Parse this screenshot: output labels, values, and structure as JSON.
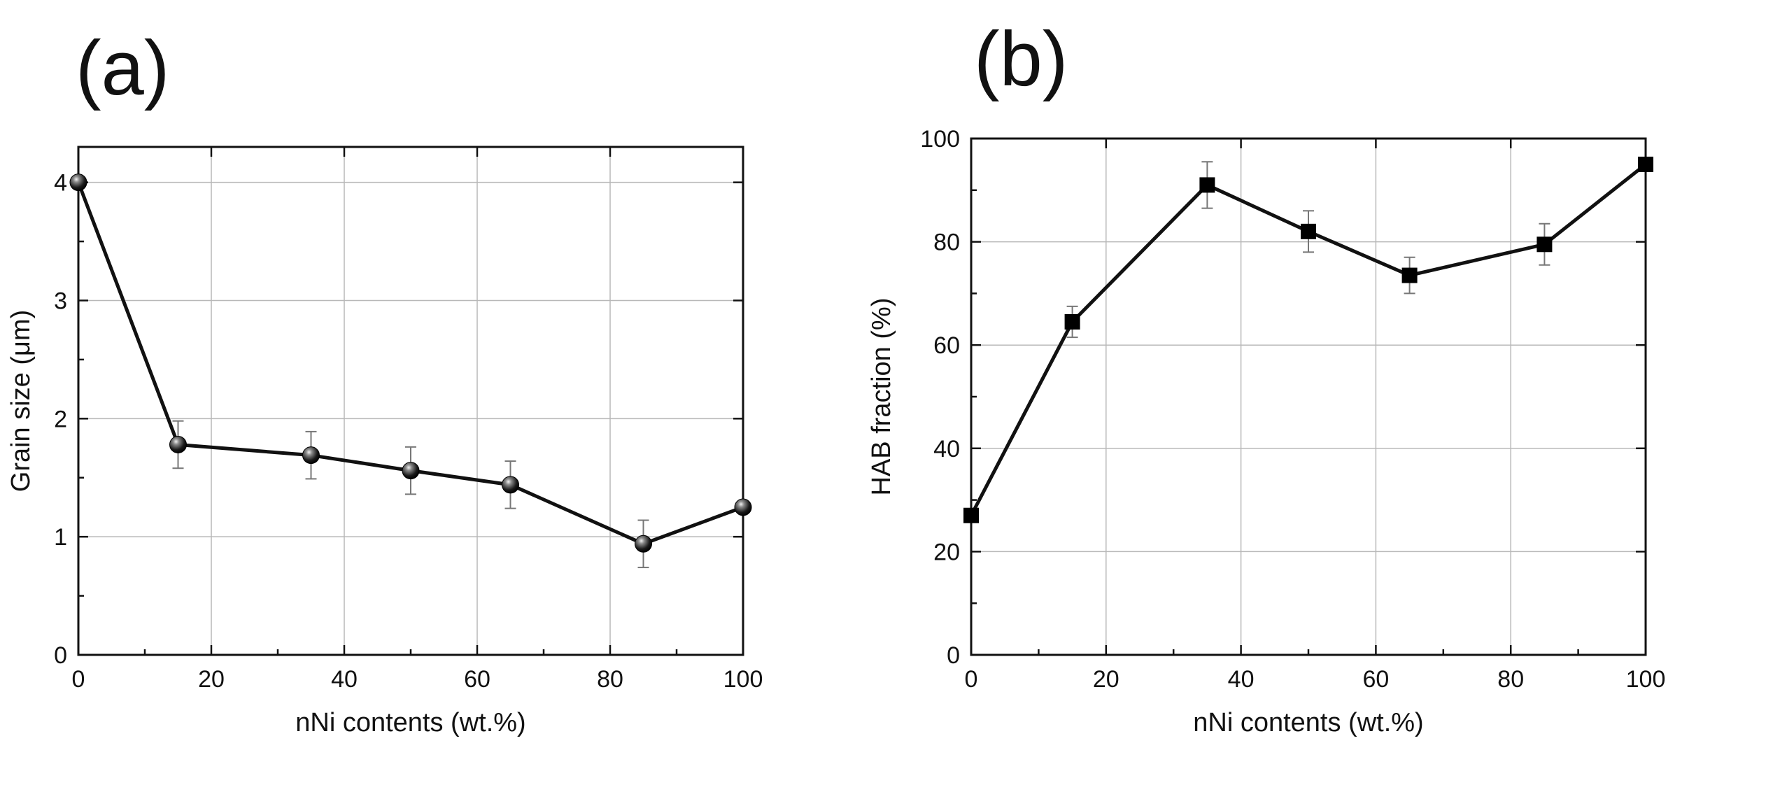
{
  "chart_data": [
    {
      "panel_label": "(a)",
      "type": "line",
      "marker": "sphere",
      "x": [
        0,
        15,
        35,
        50,
        65,
        85,
        100
      ],
      "series": [
        {
          "name": "Grain size",
          "values": [
            4.0,
            1.78,
            1.69,
            1.56,
            1.44,
            0.94,
            1.25
          ],
          "errors": [
            0,
            0.2,
            0.2,
            0.2,
            0.2,
            0.2,
            0
          ]
        }
      ],
      "xlabel": "nNi contents (wt.%)",
      "ylabel": "Grain size  (μm)",
      "xlim": [
        0,
        100
      ],
      "ylim": [
        0,
        4.3
      ],
      "xticks": [
        0,
        20,
        40,
        60,
        80,
        100
      ],
      "yticks": [
        0,
        1,
        2,
        3,
        4
      ],
      "grid": true
    },
    {
      "panel_label": "(b)",
      "type": "line",
      "marker": "square",
      "x": [
        0,
        15,
        35,
        50,
        65,
        85,
        100
      ],
      "series": [
        {
          "name": "HAB fraction",
          "values": [
            27,
            64.5,
            91,
            82,
            73.5,
            79.5,
            95
          ],
          "errors": [
            0,
            3,
            4.5,
            4,
            3.5,
            4,
            0
          ]
        }
      ],
      "xlabel": "nNi contents (wt.%)",
      "ylabel": "HAB fraction (%)",
      "xlim": [
        0,
        100
      ],
      "ylim": [
        0,
        100
      ],
      "xticks": [
        0,
        20,
        40,
        60,
        80,
        100
      ],
      "yticks": [
        0,
        20,
        40,
        60,
        80,
        100
      ],
      "grid": true
    }
  ]
}
